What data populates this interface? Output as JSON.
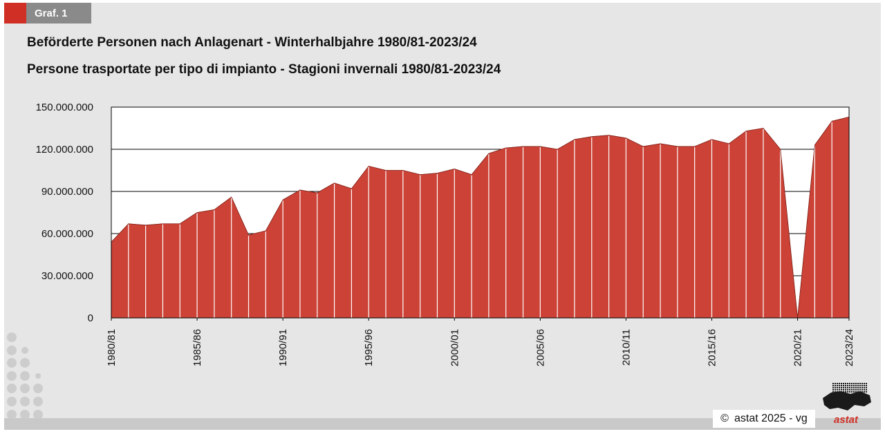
{
  "badge": {
    "label": "Graf. 1",
    "accent_color": "#cf2f24",
    "bg_color": "#8a8a8a"
  },
  "title_de": "Beförderte Personen nach Anlagenart - Winterhalbjahre 1980/81-2023/24",
  "title_it": "Persone trasportate per tipo di impianto - Stagioni invernali 1980/81-2023/24",
  "credit": {
    "symbol": "©",
    "text": "astat 2025 - vg"
  },
  "logo": {
    "text": "astat",
    "icon": "south-tyrol-map-icon"
  },
  "chart_data": {
    "type": "area",
    "color": "#cc4236",
    "ylim": [
      0,
      150000000
    ],
    "yticks": [
      0,
      30000000,
      60000000,
      90000000,
      120000000,
      150000000
    ],
    "ytick_labels": [
      "0",
      "30.000.000",
      "60.000.000",
      "90.000.000",
      "120.000.000",
      "150.000.000"
    ],
    "grid": true,
    "x": [
      "1980/81",
      "1981/82",
      "1982/83",
      "1983/84",
      "1984/85",
      "1985/86",
      "1986/87",
      "1987/88",
      "1988/89",
      "1989/90",
      "1990/91",
      "1991/92",
      "1992/93",
      "1993/94",
      "1994/95",
      "1995/96",
      "1996/97",
      "1997/98",
      "1998/99",
      "1999/00",
      "2000/01",
      "2001/02",
      "2002/03",
      "2003/04",
      "2004/05",
      "2005/06",
      "2006/07",
      "2007/08",
      "2008/09",
      "2009/10",
      "2010/11",
      "2011/12",
      "2012/13",
      "2013/14",
      "2014/15",
      "2015/16",
      "2016/17",
      "2017/18",
      "2018/19",
      "2019/20",
      "2020/21",
      "2021/22",
      "2022/23",
      "2023/24"
    ],
    "xtick_labels": [
      "1980/81",
      "1985/86",
      "1990/91",
      "1995/96",
      "2000/01",
      "2005/06",
      "2010/11",
      "2015/16",
      "2020/21",
      "2023/24"
    ],
    "values": [
      54000000,
      67000000,
      66000000,
      67000000,
      67000000,
      75000000,
      77000000,
      86000000,
      59000000,
      62000000,
      84000000,
      91000000,
      89000000,
      96000000,
      92000000,
      108000000,
      105000000,
      105000000,
      102000000,
      103000000,
      106000000,
      102000000,
      117000000,
      121000000,
      122000000,
      122000000,
      120000000,
      127000000,
      129000000,
      130000000,
      128000000,
      122000000,
      124000000,
      122000000,
      122000000,
      127000000,
      124000000,
      133000000,
      135000000,
      120000000,
      0,
      123000000,
      140000000,
      143000000
    ]
  }
}
